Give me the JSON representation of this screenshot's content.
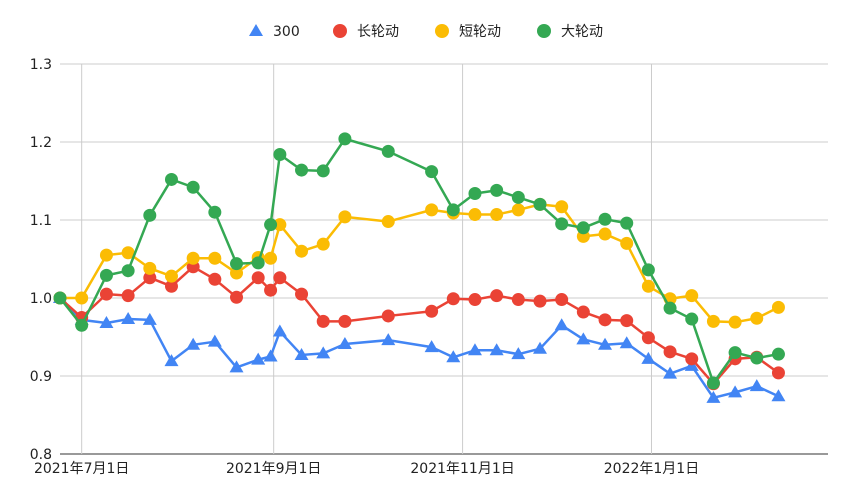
{
  "chart_data": {
    "type": "line",
    "title": "",
    "xlabel": "",
    "ylabel": "",
    "ylim": [
      0.8,
      1.3
    ],
    "yticks": [
      "0.8",
      "0.9",
      "1.0",
      "1.1",
      "1.2",
      "1.3"
    ],
    "xticks": [
      {
        "date": "2021-07-01",
        "label": "2021年7月1日"
      },
      {
        "date": "2021-09-01",
        "label": "2021年9月1日"
      },
      {
        "date": "2021-11-01",
        "label": "2021年11月1日"
      },
      {
        "date": "2022-01-01",
        "label": "2022年1月1日"
      }
    ],
    "x_range": [
      "2021-06-24",
      "2022-02-27"
    ],
    "legend_position": "top",
    "grid": true,
    "x": [
      "2021-06-24",
      "2021-07-01",
      "2021-07-09",
      "2021-07-16",
      "2021-07-23",
      "2021-07-30",
      "2021-08-06",
      "2021-08-13",
      "2021-08-20",
      "2021-08-27",
      "2021-08-31",
      "2021-09-03",
      "2021-09-10",
      "2021-09-17",
      "2021-09-24",
      "2021-10-08",
      "2021-10-22",
      "2021-10-29",
      "2021-11-05",
      "2021-11-12",
      "2021-11-19",
      "2021-11-26",
      "2021-12-03",
      "2021-12-10",
      "2021-12-17",
      "2021-12-24",
      "2021-12-31",
      "2022-01-07",
      "2022-01-14",
      "2022-01-21",
      "2022-01-28",
      "2022-02-04",
      "2022-02-11",
      "2022-02-18",
      "2022-02-25"
    ],
    "series": [
      {
        "name": "300",
        "marker": "triangle",
        "color": "#4285f4",
        "values": [
          1.0,
          0.972,
          0.968,
          0.973,
          0.972,
          0.919,
          0.94,
          0.944,
          0.911,
          0.921,
          0.925,
          0.957,
          0.927,
          0.929,
          0.941,
          0.946,
          0.937,
          0.924,
          0.933,
          0.933,
          0.928,
          0.935,
          0.965,
          0.947,
          0.94,
          0.942,
          0.922,
          0.903,
          0.913,
          0.872,
          0.879,
          0.887,
          0.874,
          null,
          null
        ]
      },
      {
        "name": "长轮动",
        "marker": "circle",
        "color": "#ea4335",
        "values": [
          1.0,
          0.975,
          1.005,
          1.003,
          1.026,
          1.015,
          1.04,
          1.024,
          1.001,
          1.026,
          1.01,
          1.026,
          1.005,
          0.97,
          0.97,
          0.977,
          0.983,
          0.999,
          0.998,
          1.003,
          0.998,
          0.996,
          0.998,
          0.982,
          0.972,
          0.971,
          0.949,
          0.931,
          0.922,
          0.89,
          0.922,
          0.924,
          0.904,
          null,
          null
        ]
      },
      {
        "name": "短轮动",
        "marker": "circle",
        "color": "#fbbc04",
        "values": [
          1.0,
          1.0,
          1.055,
          1.058,
          1.038,
          1.028,
          1.051,
          1.051,
          1.032,
          1.052,
          1.051,
          1.094,
          1.06,
          1.069,
          1.104,
          1.098,
          1.113,
          1.109,
          1.107,
          1.107,
          1.113,
          1.12,
          1.117,
          1.079,
          1.082,
          1.07,
          1.015,
          0.999,
          1.003,
          0.97,
          0.969,
          0.974,
          0.988,
          null,
          null
        ]
      },
      {
        "name": "大轮动",
        "marker": "circle",
        "color": "#34a853",
        "values": [
          1.0,
          0.965,
          1.029,
          1.035,
          1.106,
          1.152,
          1.142,
          1.11,
          1.044,
          1.045,
          1.094,
          1.184,
          1.164,
          1.163,
          1.204,
          1.188,
          1.162,
          1.113,
          1.134,
          1.138,
          1.129,
          1.12,
          1.095,
          1.09,
          1.101,
          1.096,
          1.036,
          0.987,
          0.973,
          0.891,
          0.93,
          0.923,
          0.928,
          null,
          null
        ]
      }
    ]
  }
}
